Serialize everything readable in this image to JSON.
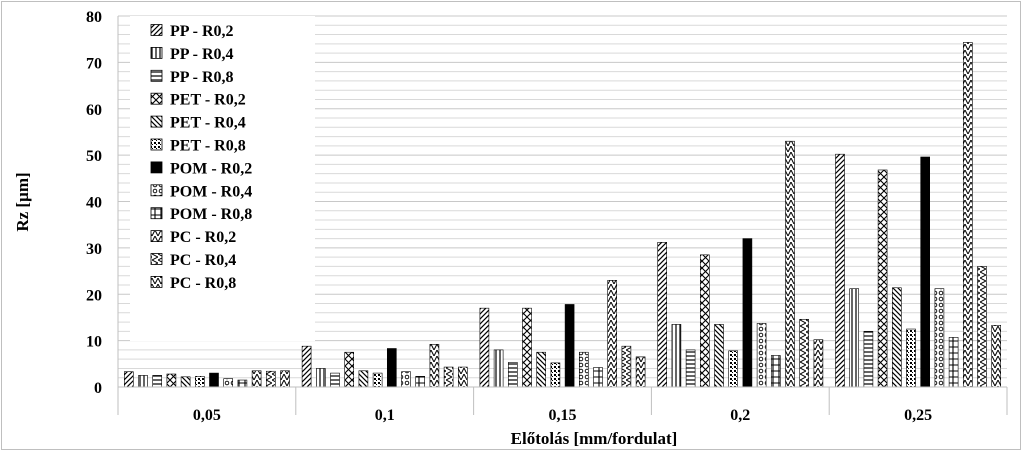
{
  "chart_data": {
    "type": "bar",
    "title": "",
    "xlabel": "Előtolás [mm/fordulat]",
    "ylabel": "Rz [µm]",
    "ylim": [
      0,
      80
    ],
    "yticks": [
      0,
      10,
      20,
      30,
      40,
      50,
      60,
      70,
      80
    ],
    "grid": true,
    "legend_position": "top-left",
    "categories": [
      "0,05",
      "0,1",
      "0,15",
      "0,2",
      "0,25"
    ],
    "series": [
      {
        "name": "PP - R0,2",
        "pattern": "diag-up",
        "values": [
          3.3,
          8.8,
          17.0,
          31.2,
          50.2
        ]
      },
      {
        "name": "PP - R0,4",
        "pattern": "vertical",
        "values": [
          2.5,
          4.0,
          8.0,
          13.5,
          21.2
        ]
      },
      {
        "name": "PP - R0,8",
        "pattern": "horizontal",
        "values": [
          2.5,
          3.0,
          5.3,
          8.0,
          12.0
        ]
      },
      {
        "name": "PET - R0,2",
        "pattern": "crosshatch",
        "values": [
          2.8,
          7.5,
          17.0,
          28.5,
          46.8
        ]
      },
      {
        "name": "PET - R0,4",
        "pattern": "diag-down",
        "values": [
          2.2,
          3.5,
          7.5,
          13.5,
          21.4
        ]
      },
      {
        "name": "PET - R0,8",
        "pattern": "dots",
        "values": [
          2.3,
          3.0,
          5.2,
          7.8,
          12.5
        ]
      },
      {
        "name": "POM - R0,2",
        "pattern": "solid",
        "values": [
          3.0,
          8.3,
          17.8,
          32.0,
          49.6
        ]
      },
      {
        "name": "POM - R0,4",
        "pattern": "circles",
        "values": [
          1.8,
          3.3,
          7.5,
          13.7,
          21.2
        ]
      },
      {
        "name": "POM - R0,8",
        "pattern": "grid",
        "values": [
          1.5,
          2.3,
          4.2,
          6.8,
          10.7
        ]
      },
      {
        "name": "PC - R0,2",
        "pattern": "tri-up",
        "values": [
          3.5,
          9.2,
          23.0,
          53.0,
          74.3
        ]
      },
      {
        "name": "PC - R0,4",
        "pattern": "tri-right",
        "values": [
          3.4,
          4.3,
          8.8,
          14.6,
          26.0
        ]
      },
      {
        "name": "PC - R0,8",
        "pattern": "tri-down",
        "values": [
          3.5,
          4.3,
          6.5,
          10.2,
          13.3
        ]
      }
    ]
  }
}
